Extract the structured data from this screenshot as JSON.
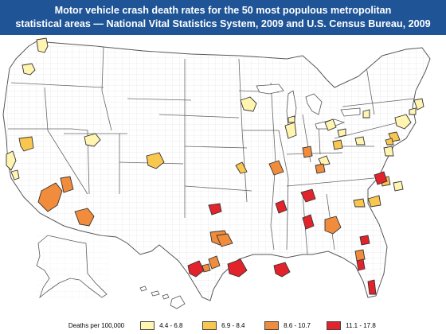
{
  "title": {
    "line1": "Motor vehicle crash death rates for the 50 most populous metropolitan",
    "line2": "statistical areas  — National Vital Statistics System, 2009 and U.S. Census Bureau, 2009"
  },
  "legend": {
    "title": "Deaths per 100,000",
    "items": [
      {
        "label": "4.4 - 6.8",
        "color": "#fff4b0"
      },
      {
        "label": "6.9 - 8.4",
        "color": "#f9c650"
      },
      {
        "label": "8.6 - 10.7",
        "color": "#f08c3c"
      },
      {
        "label": "11.1 - 17.8",
        "color": "#e3232c"
      }
    ]
  },
  "colors": {
    "title_bar": "#1f5597",
    "land": "#ffffff",
    "boundary": "#bcbcbc",
    "state_line": "#666666"
  }
}
